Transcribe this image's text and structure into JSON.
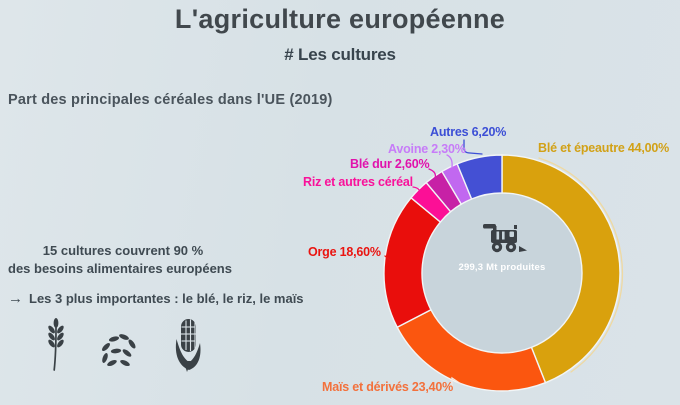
{
  "header": {
    "title": "L'agriculture européenne",
    "subtitle": "# Les cultures"
  },
  "section": {
    "heading": "Part des principales céréales dans l'UE (2019)"
  },
  "facts": {
    "line1": "15 cultures couvrent 90 %",
    "line2": "des besoins alimentaires européens",
    "arrow": "→",
    "line3": "Les 3 plus importantes : le blé, le riz, le maïs",
    "icons": [
      "wheat-icon",
      "rice-icon",
      "corn-icon"
    ]
  },
  "chart_data": {
    "type": "pie",
    "donut": true,
    "title": "Part des principales céréales dans l'UE (2019)",
    "start_angle_deg": 0,
    "direction": "clockwise",
    "unit": "%",
    "center_icon": "combine-harvester-icon",
    "center_label": "299,3 Mt produites",
    "center_fill": "#c8d4db",
    "slices": [
      {
        "label": "Blé et épeautre",
        "display": "Blé et épeautre 44,00%",
        "value": 44.0,
        "color": "#d9a10d",
        "label_color": "#d2a117",
        "line_color": "#efd9a2"
      },
      {
        "label": "Maïs et dérivés",
        "display": "Maïs et dérivés 23,40%",
        "value": 23.4,
        "color": "#fb560f",
        "label_color": "#f3713c",
        "line_color": "#f5e9e2"
      },
      {
        "label": "Orge",
        "display": "Orge 18,60%",
        "value": 18.6,
        "color": "#e90e0c",
        "label_color": "#ea1410",
        "line_color": "#ea1410"
      },
      {
        "label": "Riz et autres céréales",
        "display": "Riz et autres céréal",
        "value": 2.9,
        "color": "#fc0f96",
        "label_color": "#f9119a",
        "line_color": "#f9119a"
      },
      {
        "label": "Blé dur",
        "display": "Blé dur 2,60%",
        "value": 2.6,
        "color": "#c721a6",
        "label_color": "#e112ac",
        "line_color": "#e112ac"
      },
      {
        "label": "Avoine",
        "display": "Avoine 2,30%",
        "value": 2.3,
        "color": "#c168f0",
        "label_color": "#c77cf8",
        "line_color": "#c77cf8"
      },
      {
        "label": "Autres",
        "display": "Autres 6,20%",
        "value": 6.2,
        "color": "#4450d4",
        "label_color": "#3c4fd6",
        "line_color": "#3c4fd6"
      }
    ]
  }
}
